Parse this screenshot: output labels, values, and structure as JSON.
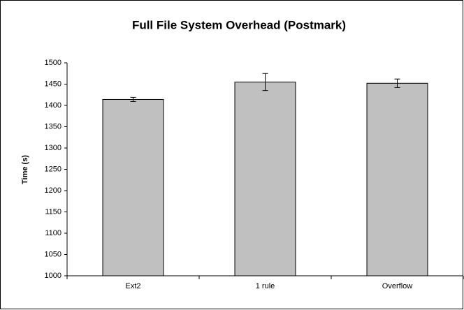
{
  "chart_data": {
    "type": "bar",
    "title": "Full File System Overhead (Postmark)",
    "y_label": "Time (s)",
    "categories": [
      "Ext2",
      "1 rule",
      "Overflow"
    ],
    "values": [
      1414,
      1455,
      1452
    ],
    "errors": [
      5,
      20,
      10
    ],
    "color": "#c0c0c0",
    "ylim": [
      1000,
      1500
    ],
    "yticks": [
      1000,
      1050,
      1100,
      1150,
      1200,
      1250,
      1300,
      1350,
      1400,
      1450,
      1500
    ],
    "grid": false
  }
}
